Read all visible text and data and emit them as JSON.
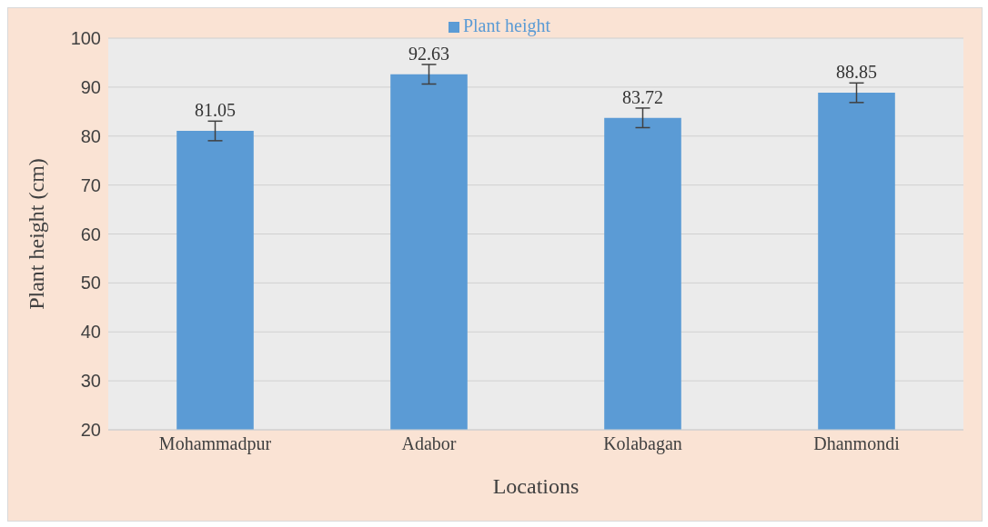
{
  "chart_data": {
    "type": "bar",
    "xlabel": "Locations",
    "ylabel": "Plant height (cm)",
    "categories": [
      "Mohammadpur",
      "Adabor",
      "Kolabagan",
      "Dhanmondi"
    ],
    "series": [
      {
        "name": "Plant height",
        "color": "#5b9bd5",
        "values": [
          81.05,
          92.63,
          83.72,
          88.85
        ],
        "errors": [
          2,
          2,
          2,
          2
        ]
      }
    ],
    "ylim": [
      20,
      100
    ],
    "yticks": [
      20,
      30,
      40,
      50,
      60,
      70,
      80,
      90,
      100
    ],
    "grid": "y",
    "legend": "top",
    "data_labels": true
  }
}
